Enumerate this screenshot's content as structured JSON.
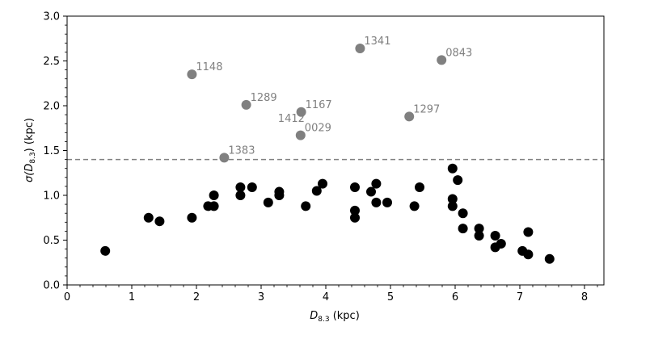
{
  "chart_data": {
    "type": "scatter",
    "title": "",
    "xlabel": {
      "main": "D",
      "sub": "8.3",
      "unit": " (kpc)"
    },
    "ylabel": {
      "pre": "σ(D",
      "sub": "8.3",
      "post": ") (kpc)"
    },
    "xlim": [
      0,
      8.3
    ],
    "ylim": [
      0,
      3.0
    ],
    "xticks": [
      "0",
      "1",
      "2",
      "3",
      "4",
      "5",
      "6",
      "7",
      "8"
    ],
    "yticks": [
      "0.0",
      "0.5",
      "1.0",
      "1.5",
      "2.0",
      "2.5",
      "3.0"
    ],
    "threshold": {
      "y": 1.4,
      "style": "dashed",
      "color": "#808080"
    },
    "grid": false,
    "colors": {
      "high": "#808080",
      "low": "#000000",
      "label": "#808080"
    },
    "series": [
      {
        "color": "#808080",
        "points": [
          {
            "x": 1.93,
            "y": 2.35,
            "label": "1148"
          },
          {
            "x": 2.77,
            "y": 2.01,
            "label": "1289"
          },
          {
            "x": 3.62,
            "y": 1.93,
            "label": "1167"
          },
          {
            "x": 3.61,
            "y": 1.67,
            "label": "0029"
          },
          {
            "x": 2.43,
            "y": 1.42,
            "label": "1383"
          },
          {
            "x": 4.53,
            "y": 2.64,
            "label": "1341"
          },
          {
            "x": 5.79,
            "y": 2.51,
            "label": "0843"
          },
          {
            "x": 5.29,
            "y": 1.88,
            "label": "1297"
          }
        ],
        "extra_labels": [
          {
            "text": "1412",
            "x": 3.26,
            "y": 1.82
          }
        ]
      },
      {
        "color": "#000000",
        "points": [
          {
            "x": 0.59,
            "y": 0.38
          },
          {
            "x": 1.26,
            "y": 0.75
          },
          {
            "x": 1.43,
            "y": 0.71
          },
          {
            "x": 1.93,
            "y": 0.75
          },
          {
            "x": 2.18,
            "y": 0.88
          },
          {
            "x": 2.27,
            "y": 0.88
          },
          {
            "x": 2.27,
            "y": 1.0
          },
          {
            "x": 2.68,
            "y": 1.0
          },
          {
            "x": 2.68,
            "y": 1.09
          },
          {
            "x": 2.86,
            "y": 1.09
          },
          {
            "x": 3.11,
            "y": 0.92
          },
          {
            "x": 3.28,
            "y": 1.0
          },
          {
            "x": 3.28,
            "y": 1.04
          },
          {
            "x": 3.69,
            "y": 0.88
          },
          {
            "x": 3.86,
            "y": 1.05
          },
          {
            "x": 3.95,
            "y": 1.13
          },
          {
            "x": 4.45,
            "y": 0.75
          },
          {
            "x": 4.45,
            "y": 0.83
          },
          {
            "x": 4.45,
            "y": 1.09
          },
          {
            "x": 4.7,
            "y": 1.04
          },
          {
            "x": 4.78,
            "y": 0.92
          },
          {
            "x": 4.78,
            "y": 1.13
          },
          {
            "x": 4.95,
            "y": 0.92
          },
          {
            "x": 5.37,
            "y": 0.88
          },
          {
            "x": 5.45,
            "y": 1.09
          },
          {
            "x": 5.96,
            "y": 0.88
          },
          {
            "x": 5.96,
            "y": 0.96
          },
          {
            "x": 5.96,
            "y": 1.3
          },
          {
            "x": 6.04,
            "y": 1.17
          },
          {
            "x": 6.12,
            "y": 0.8
          },
          {
            "x": 6.12,
            "y": 0.63
          },
          {
            "x": 6.37,
            "y": 0.63
          },
          {
            "x": 6.37,
            "y": 0.55
          },
          {
            "x": 6.62,
            "y": 0.55
          },
          {
            "x": 6.62,
            "y": 0.42
          },
          {
            "x": 6.71,
            "y": 0.46
          },
          {
            "x": 7.04,
            "y": 0.38
          },
          {
            "x": 7.13,
            "y": 0.34
          },
          {
            "x": 7.13,
            "y": 0.59
          },
          {
            "x": 7.46,
            "y": 0.29
          }
        ]
      }
    ]
  }
}
